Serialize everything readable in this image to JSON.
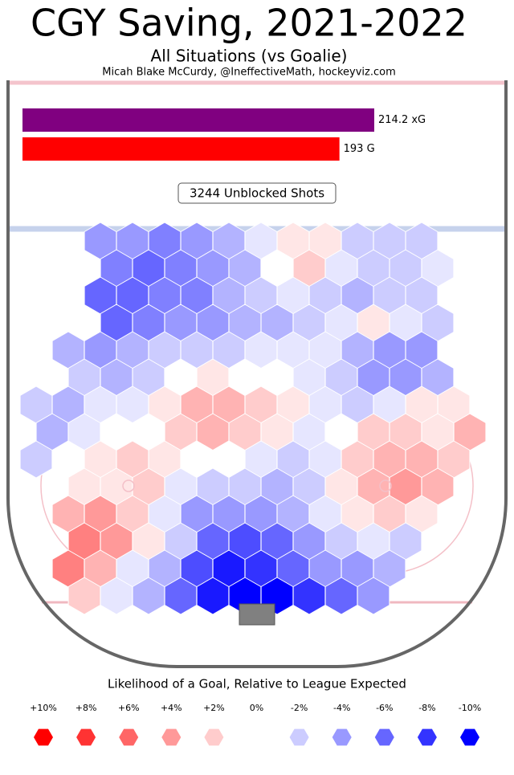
{
  "chart_data": {
    "type": "hexbin",
    "title": "CGY Saving, 2021-2022",
    "subtitle": "All Situations (vs Goalie)",
    "credit": "Micah Blake McCurdy, @IneffectiveMath, hockeyviz.com",
    "bars": {
      "categories": [
        "xG",
        "G"
      ],
      "values": [
        214.2,
        193
      ],
      "value_labels": [
        "214.2 xG",
        "193 G"
      ],
      "colors": [
        "#800080",
        "#ff0000"
      ]
    },
    "shots_label": "3244 Unblocked Shots",
    "legend_title": "Likelihood of a Goal, Relative to League Expected",
    "legend": [
      {
        "value": 10,
        "label": "+10%"
      },
      {
        "value": 8,
        "label": "+8%"
      },
      {
        "value": 6,
        "label": "+6%"
      },
      {
        "value": 4,
        "label": "+4%"
      },
      {
        "value": 2,
        "label": "+2%"
      },
      {
        "value": 0,
        "label": "0%"
      },
      {
        "value": -2,
        "label": "-2%"
      },
      {
        "value": -4,
        "label": "-4%"
      },
      {
        "value": -6,
        "label": "-6%"
      },
      {
        "value": -8,
        "label": "-8%"
      },
      {
        "value": -10,
        "label": "-10%"
      }
    ],
    "colorlim": [
      -10,
      10
    ],
    "hex_values": [
      [
        null,
        null,
        -4,
        -4,
        -5,
        -4,
        -3,
        -1,
        1,
        1,
        -2,
        -2,
        -2,
        null
      ],
      [
        null,
        null,
        -5,
        -6,
        -5,
        -4,
        -3,
        0,
        2,
        -1,
        -2,
        -2,
        -1,
        null
      ],
      [
        null,
        null,
        -6,
        -6,
        -5,
        -5,
        -3,
        -2,
        -1,
        -2,
        -3,
        -2,
        -2,
        null
      ],
      [
        null,
        null,
        -6,
        -5,
        -4,
        -4,
        -3,
        -3,
        -2,
        -1,
        1,
        -1,
        -2,
        null
      ],
      [
        null,
        -3,
        -4,
        -3,
        -2,
        -2,
        -2,
        -1,
        -1,
        -1,
        -3,
        -4,
        -4,
        null
      ],
      [
        null,
        -2,
        -3,
        -2,
        0,
        1,
        0,
        0,
        -1,
        -2,
        -4,
        -4,
        -3,
        null
      ],
      [
        -2,
        -3,
        -1,
        -1,
        1,
        3,
        3,
        2,
        1,
        -1,
        -2,
        -1,
        1,
        1
      ],
      [
        -3,
        -1,
        0,
        0,
        2,
        3,
        2,
        1,
        -1,
        0,
        2,
        2,
        1,
        3
      ],
      [
        -2,
        0,
        1,
        2,
        1,
        0,
        0,
        -1,
        -2,
        -1,
        2,
        3,
        3,
        2
      ],
      [
        null,
        1,
        1,
        2,
        -1,
        -2,
        -2,
        -3,
        -2,
        1,
        3,
        4,
        3,
        null
      ],
      [
        null,
        3,
        4,
        2,
        -1,
        -4,
        -4,
        -4,
        -3,
        -1,
        1,
        2,
        1,
        null
      ],
      [
        null,
        5,
        4,
        1,
        -2,
        -6,
        -7,
        -6,
        -4,
        -2,
        -1,
        -2,
        null,
        null
      ],
      [
        null,
        5,
        3,
        -1,
        -3,
        -7,
        -9,
        -8,
        -6,
        -4,
        -4,
        -3,
        null,
        null
      ],
      [
        null,
        2,
        -1,
        -3,
        -6,
        -9,
        -10,
        -10,
        -8,
        -6,
        -4,
        null,
        null,
        null
      ]
    ]
  }
}
